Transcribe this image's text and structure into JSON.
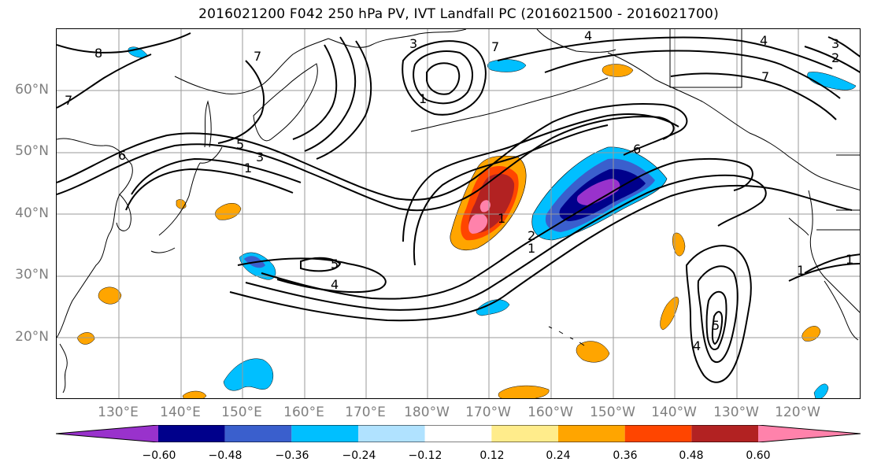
{
  "title": "2016021200 F042 250 hPa PV, IVT Landfall PC (2016021500 - 2016021700)",
  "lat_labels": [
    "60°N",
    "50°N",
    "40°N",
    "30°N",
    "20°N"
  ],
  "lon_labels": [
    "130°E",
    "140°E",
    "150°E",
    "160°E",
    "170°E",
    "180°W",
    "170°W",
    "160°W",
    "150°W",
    "140°W",
    "130°W",
    "120°W"
  ],
  "contour_labels": [
    "8",
    "7",
    "6",
    "5",
    "3",
    "1",
    "7",
    "4",
    "4",
    "3",
    "2",
    "1",
    "7",
    "5",
    "4",
    "1",
    "1",
    "2",
    "6",
    "1",
    "1",
    "5",
    "4",
    "7",
    "3"
  ],
  "colorbar": {
    "colors": [
      "#9932CC",
      "#00008B",
      "#3A5FCD",
      "#00BFFF",
      "#B0E2FF",
      "#FFFFFF",
      "#FFEC8B",
      "#FFA500",
      "#FF4500",
      "#B22222",
      "#FF82AB"
    ],
    "tick_labels": [
      "−0.60",
      "−0.48",
      "−0.36",
      "−0.24",
      "−0.12",
      "0.12",
      "0.24",
      "0.36",
      "0.48",
      "0.60"
    ]
  },
  "colors": {
    "grid": "#9a9a9a",
    "axis_label": "#7f7f7f"
  }
}
